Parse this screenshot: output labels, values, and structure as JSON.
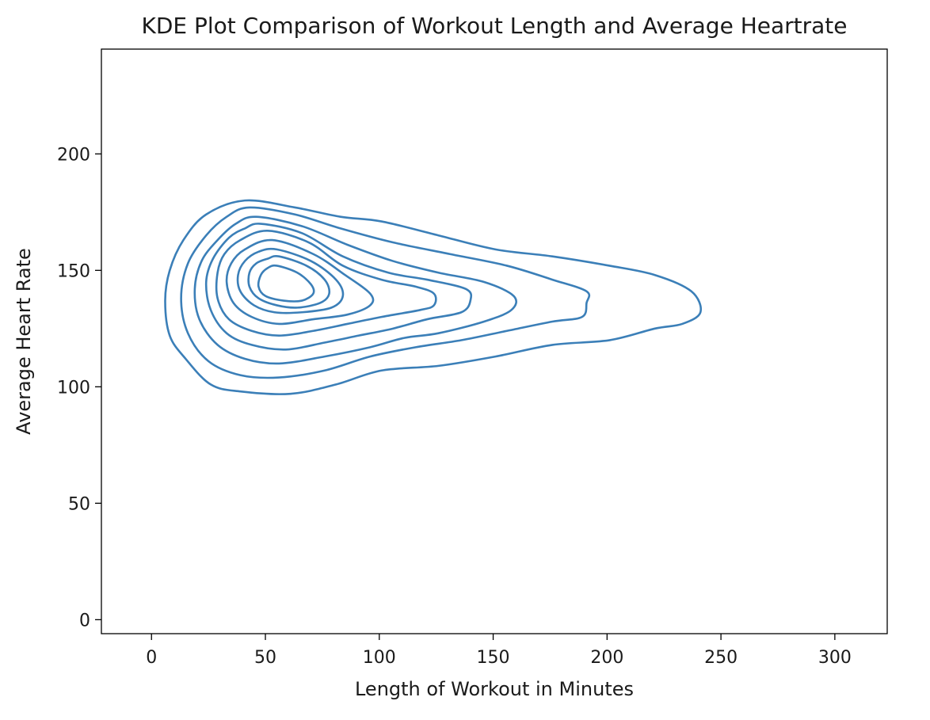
{
  "chart_data": {
    "type": "kde-contour",
    "title": "KDE Plot Comparison of Workout Length and Average Heartrate",
    "xlabel": "Length of Workout in Minutes",
    "ylabel": "Average Heart Rate",
    "xlim": [
      -22,
      323
    ],
    "ylim": [
      -6,
      245
    ],
    "xticks": [
      0,
      50,
      100,
      150,
      200,
      250,
      300
    ],
    "yticks": [
      0,
      50,
      100,
      150,
      200
    ],
    "grid": false,
    "legend": false,
    "line_color": "#3b7fb8",
    "contours": [
      {
        "level": 1,
        "points": [
          [
            41,
            180
          ],
          [
            63,
            177
          ],
          [
            83,
            173
          ],
          [
            101,
            171
          ],
          [
            126,
            165
          ],
          [
            151,
            159
          ],
          [
            176,
            156
          ],
          [
            201,
            152
          ],
          [
            221,
            148
          ],
          [
            237,
            141
          ],
          [
            241,
            132
          ],
          [
            233,
            127
          ],
          [
            221,
            125
          ],
          [
            201,
            120
          ],
          [
            176,
            118
          ],
          [
            151,
            113
          ],
          [
            126,
            109
          ],
          [
            101,
            107
          ],
          [
            81,
            101
          ],
          [
            61,
            97
          ],
          [
            39,
            98
          ],
          [
            26,
            101
          ],
          [
            15,
            112
          ],
          [
            8,
            122
          ],
          [
            6,
            137
          ],
          [
            8,
            150
          ],
          [
            14,
            163
          ],
          [
            24,
            174
          ]
        ]
      },
      {
        "level": 2,
        "points": [
          [
            43,
            177
          ],
          [
            63,
            174
          ],
          [
            83,
            168
          ],
          [
            106,
            162
          ],
          [
            131,
            157
          ],
          [
            156,
            152
          ],
          [
            176,
            146
          ],
          [
            191,
            141
          ],
          [
            191,
            136
          ],
          [
            189,
            130
          ],
          [
            176,
            128
          ],
          [
            156,
            124
          ],
          [
            136,
            120
          ],
          [
            116,
            117
          ],
          [
            96,
            113
          ],
          [
            76,
            107
          ],
          [
            56,
            104
          ],
          [
            39,
            105
          ],
          [
            25,
            111
          ],
          [
            16,
            123
          ],
          [
            13,
            138
          ],
          [
            16,
            153
          ],
          [
            24,
            165
          ],
          [
            33,
            173
          ]
        ]
      },
      {
        "level": 3,
        "points": [
          [
            46,
            173
          ],
          [
            66,
            169
          ],
          [
            86,
            161
          ],
          [
            106,
            154
          ],
          [
            126,
            149
          ],
          [
            146,
            145
          ],
          [
            159,
            139
          ],
          [
            158,
            133
          ],
          [
            146,
            128
          ],
          [
            126,
            123
          ],
          [
            111,
            121
          ],
          [
            96,
            117
          ],
          [
            76,
            113
          ],
          [
            56,
            110
          ],
          [
            41,
            112
          ],
          [
            29,
            118
          ],
          [
            21,
            129
          ],
          [
            19,
            142
          ],
          [
            22,
            154
          ],
          [
            29,
            163
          ],
          [
            37,
            170
          ]
        ]
      },
      {
        "level": 4,
        "points": [
          [
            48,
            170
          ],
          [
            66,
            166
          ],
          [
            84,
            156
          ],
          [
            104,
            149
          ],
          [
            121,
            146
          ],
          [
            138,
            142
          ],
          [
            140,
            137
          ],
          [
            136,
            132
          ],
          [
            121,
            129
          ],
          [
            106,
            125
          ],
          [
            91,
            122
          ],
          [
            76,
            119
          ],
          [
            59,
            116
          ],
          [
            44,
            118
          ],
          [
            33,
            123
          ],
          [
            26,
            133
          ],
          [
            24,
            145
          ],
          [
            27,
            155
          ],
          [
            34,
            164
          ],
          [
            41,
            168
          ]
        ]
      },
      {
        "level": 5,
        "points": [
          [
            51,
            167
          ],
          [
            69,
            162
          ],
          [
            84,
            152
          ],
          [
            101,
            146
          ],
          [
            116,
            143
          ],
          [
            124,
            140
          ],
          [
            124,
            135
          ],
          [
            118,
            133
          ],
          [
            101,
            130
          ],
          [
            86,
            127
          ],
          [
            71,
            124
          ],
          [
            56,
            122
          ],
          [
            44,
            124
          ],
          [
            34,
            129
          ],
          [
            29,
            138
          ],
          [
            29,
            149
          ],
          [
            32,
            157
          ],
          [
            39,
            163
          ]
        ]
      },
      {
        "level": 6,
        "points": [
          [
            53,
            163
          ],
          [
            71,
            157
          ],
          [
            85,
            148
          ],
          [
            96,
            140
          ],
          [
            96,
            135
          ],
          [
            86,
            131
          ],
          [
            71,
            129
          ],
          [
            56,
            127
          ],
          [
            44,
            130
          ],
          [
            36,
            136
          ],
          [
            33,
            145
          ],
          [
            35,
            153
          ],
          [
            41,
            159
          ]
        ]
      },
      {
        "level": 7,
        "points": [
          [
            55,
            159
          ],
          [
            70,
            154
          ],
          [
            81,
            146
          ],
          [
            84,
            139
          ],
          [
            79,
            134
          ],
          [
            66,
            132
          ],
          [
            54,
            132
          ],
          [
            45,
            135
          ],
          [
            39,
            141
          ],
          [
            38,
            148
          ],
          [
            41,
            154
          ],
          [
            47,
            158
          ]
        ]
      },
      {
        "level": 8,
        "points": [
          [
            56,
            156
          ],
          [
            68,
            152
          ],
          [
            76,
            146
          ],
          [
            78,
            140
          ],
          [
            74,
            136
          ],
          [
            64,
            134
          ],
          [
            55,
            135
          ],
          [
            47,
            138
          ],
          [
            43,
            143
          ],
          [
            43,
            149
          ],
          [
            46,
            153
          ],
          [
            51,
            155
          ]
        ]
      },
      {
        "level": 9,
        "points": [
          [
            55,
            152
          ],
          [
            64,
            149
          ],
          [
            70,
            144
          ],
          [
            71,
            140
          ],
          [
            66,
            137
          ],
          [
            58,
            137
          ],
          [
            50,
            139
          ],
          [
            47,
            143
          ],
          [
            48,
            148
          ],
          [
            51,
            151
          ]
        ]
      }
    ]
  }
}
